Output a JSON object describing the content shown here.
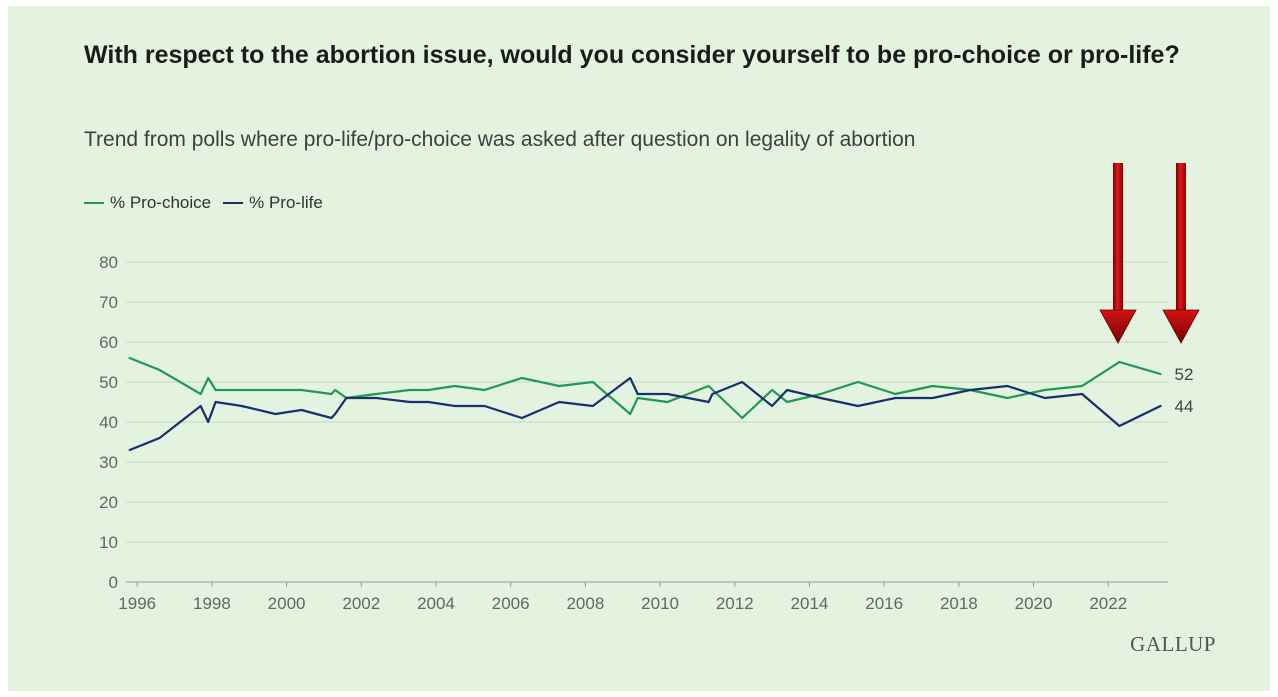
{
  "chart_data": {
    "type": "line",
    "title": "With respect to the abortion issue, would you consider yourself to be pro-choice or pro-life?",
    "subtitle": "Trend from polls where pro-life/pro-choice was asked after question on legality of abortion",
    "ylim": [
      0,
      80
    ],
    "yticks": [
      0,
      10,
      20,
      30,
      40,
      50,
      60,
      70,
      80
    ],
    "xlim": [
      1995.7,
      2023.6
    ],
    "xticks": [
      "1996",
      "1998",
      "2000",
      "2002",
      "2004",
      "2006",
      "2008",
      "2010",
      "2012",
      "2014",
      "2016",
      "2018",
      "2020",
      "2022"
    ],
    "legend_position": "top-left",
    "grid": true,
    "series": [
      {
        "name": "% Pro-choice",
        "color": "#1f9a52",
        "end_label": "52",
        "points": [
          [
            1995.8,
            56
          ],
          [
            1996.6,
            53
          ],
          [
            1997.7,
            47
          ],
          [
            1997.9,
            51
          ],
          [
            1998.1,
            48
          ],
          [
            1998.8,
            48
          ],
          [
            1999.7,
            48
          ],
          [
            2000.4,
            48
          ],
          [
            2001.2,
            47
          ],
          [
            2001.3,
            48
          ],
          [
            2001.6,
            46
          ],
          [
            2002.4,
            47
          ],
          [
            2003.3,
            48
          ],
          [
            2003.8,
            48
          ],
          [
            2004.5,
            49
          ],
          [
            2005.3,
            48
          ],
          [
            2006.3,
            51
          ],
          [
            2007.3,
            49
          ],
          [
            2008.2,
            50
          ],
          [
            2009.2,
            42
          ],
          [
            2009.4,
            46
          ],
          [
            2010.2,
            45
          ],
          [
            2011.3,
            49
          ],
          [
            2012.2,
            41
          ],
          [
            2013.0,
            48
          ],
          [
            2013.4,
            45
          ],
          [
            2014.3,
            47
          ],
          [
            2015.3,
            50
          ],
          [
            2016.3,
            47
          ],
          [
            2017.3,
            49
          ],
          [
            2018.3,
            48
          ],
          [
            2019.3,
            46
          ],
          [
            2020.3,
            48
          ],
          [
            2021.3,
            49
          ],
          [
            2022.3,
            55
          ],
          [
            2023.4,
            52
          ]
        ]
      },
      {
        "name": "% Pro-life",
        "color": "#17306e",
        "end_label": "44",
        "points": [
          [
            1995.8,
            33
          ],
          [
            1996.6,
            36
          ],
          [
            1997.7,
            44
          ],
          [
            1997.9,
            40
          ],
          [
            1998.1,
            45
          ],
          [
            1998.8,
            44
          ],
          [
            1999.7,
            42
          ],
          [
            2000.4,
            43
          ],
          [
            2001.2,
            41
          ],
          [
            2001.3,
            42
          ],
          [
            2001.6,
            46
          ],
          [
            2002.4,
            46
          ],
          [
            2003.3,
            45
          ],
          [
            2003.8,
            45
          ],
          [
            2004.5,
            44
          ],
          [
            2005.3,
            44
          ],
          [
            2006.3,
            41
          ],
          [
            2007.3,
            45
          ],
          [
            2008.2,
            44
          ],
          [
            2009.2,
            51
          ],
          [
            2009.4,
            47
          ],
          [
            2010.2,
            47
          ],
          [
            2011.3,
            45
          ],
          [
            2011.4,
            47
          ],
          [
            2012.2,
            50
          ],
          [
            2013.0,
            44
          ],
          [
            2013.4,
            48
          ],
          [
            2014.3,
            46
          ],
          [
            2015.3,
            44
          ],
          [
            2016.3,
            46
          ],
          [
            2017.3,
            46
          ],
          [
            2018.3,
            48
          ],
          [
            2019.3,
            49
          ],
          [
            2020.3,
            46
          ],
          [
            2021.3,
            47
          ],
          [
            2022.3,
            39
          ],
          [
            2023.4,
            44
          ]
        ]
      }
    ],
    "annotations": [
      {
        "type": "arrow",
        "color": "#c00000",
        "direction": "down"
      },
      {
        "type": "arrow",
        "color": "#c00000",
        "direction": "down"
      }
    ]
  },
  "footer": {
    "brand": "GALLUP"
  }
}
